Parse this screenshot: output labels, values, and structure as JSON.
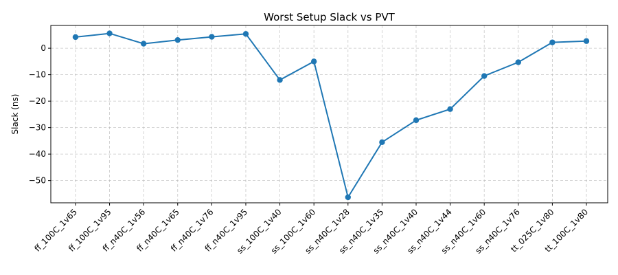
{
  "chart_data": {
    "type": "line",
    "title": "Worst Setup Slack vs PVT",
    "xlabel": "",
    "ylabel": "Slack (ns)",
    "categories": [
      "ff_100C_1v65",
      "ff_100C_1v95",
      "ff_n40C_1v56",
      "ff_n40C_1v65",
      "ff_n40C_1v76",
      "ff_n40C_1v95",
      "ss_100C_1v40",
      "ss_100C_1v60",
      "ss_n40C_1v28",
      "ss_n40C_1v35",
      "ss_n40C_1v40",
      "ss_n40C_1v44",
      "ss_n40C_1v60",
      "ss_n40C_1v76",
      "tt_025C_1v80",
      "tt_100C_1v80"
    ],
    "series": [
      {
        "name": "",
        "values": [
          4.2,
          5.6,
          1.7,
          3.1,
          4.3,
          5.4,
          -12.0,
          -5.0,
          -56.3,
          -35.5,
          -27.2,
          -23.0,
          -10.5,
          -5.3,
          2.2,
          2.7
        ]
      }
    ],
    "ylim": [
      -58.4,
      8.6
    ],
    "yticks": [
      0,
      -10,
      -20,
      -30,
      -40,
      -50
    ],
    "grid": true,
    "color": "#1f77b4"
  }
}
